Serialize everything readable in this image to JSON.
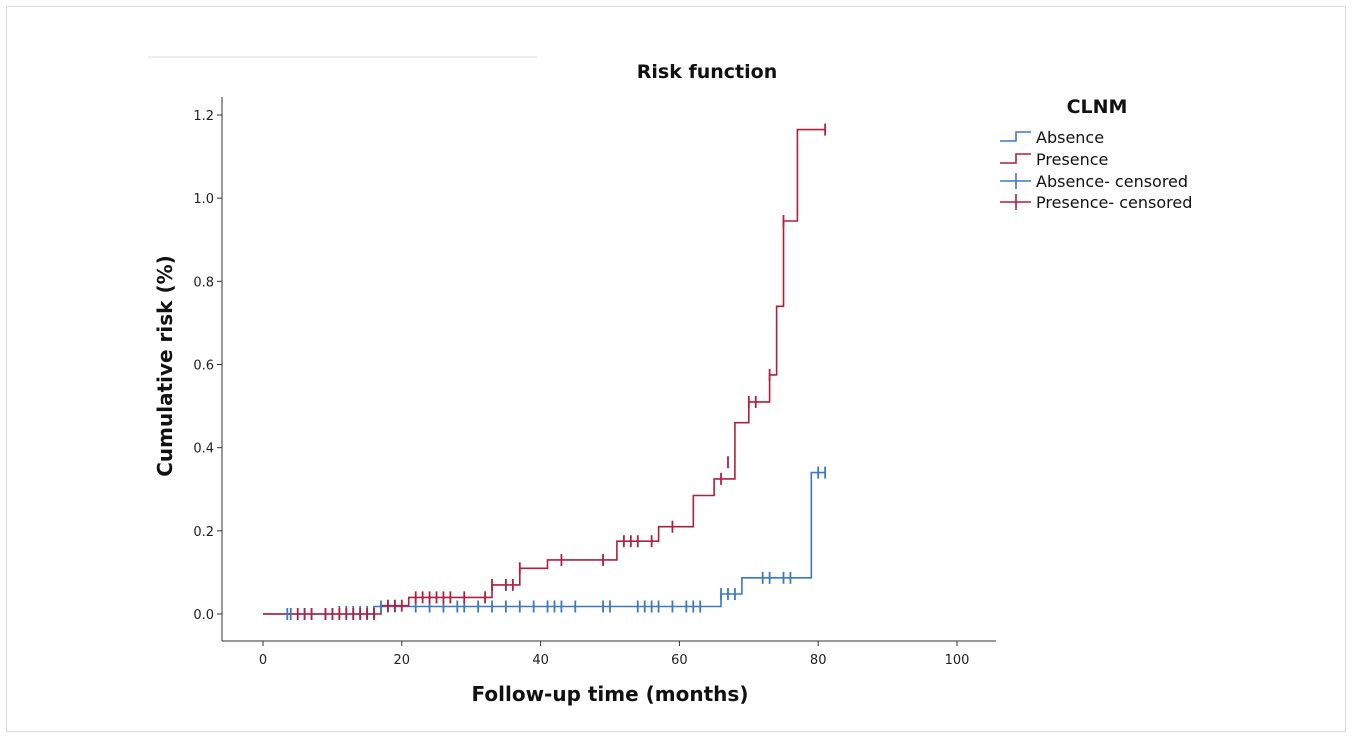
{
  "chart_data": {
    "type": "line",
    "title": "Risk function",
    "xlabel": "Follow-up time (months)",
    "ylabel": "Cumulative risk (%)",
    "xlim": [
      0,
      100
    ],
    "ylim": [
      0,
      1.2
    ],
    "x_ticks": [
      "0",
      "20",
      "40",
      "60",
      "80",
      "100"
    ],
    "y_ticks": [
      "0.0",
      "0.2",
      "0.4",
      "0.6",
      "0.8",
      "1.0",
      "1.2"
    ],
    "grid": false,
    "legend": {
      "title": "CLNM",
      "placement": "right",
      "entries": [
        "Absence",
        "Presence",
        "Absence- censored",
        "Presence- censored"
      ]
    },
    "series": [
      {
        "name": "Absence",
        "color": "#3b78c4",
        "step": [
          [
            0,
            0
          ],
          [
            16,
            0
          ],
          [
            16,
            0.018
          ],
          [
            66,
            0.018
          ],
          [
            66,
            0.048
          ],
          [
            69,
            0.048
          ],
          [
            69,
            0.087
          ],
          [
            79,
            0.087
          ],
          [
            79,
            0.34
          ],
          [
            81,
            0.34
          ]
        ],
        "censored": [
          [
            3.5,
            0
          ],
          [
            4,
            0
          ],
          [
            6,
            0
          ],
          [
            7,
            0
          ],
          [
            9,
            0
          ],
          [
            10,
            0
          ],
          [
            11,
            0.005
          ],
          [
            12,
            0.005
          ],
          [
            13,
            0.005
          ],
          [
            14,
            0.005
          ],
          [
            15,
            0.005
          ],
          [
            16,
            0.005
          ],
          [
            17,
            0.018
          ],
          [
            18,
            0.018
          ],
          [
            19,
            0.018
          ],
          [
            22,
            0.018
          ],
          [
            24,
            0.018
          ],
          [
            26,
            0.018
          ],
          [
            28,
            0.018
          ],
          [
            29,
            0.018
          ],
          [
            31,
            0.018
          ],
          [
            33,
            0.018
          ],
          [
            35,
            0.018
          ],
          [
            37,
            0.018
          ],
          [
            39,
            0.018
          ],
          [
            41,
            0.018
          ],
          [
            42,
            0.018
          ],
          [
            43,
            0.018
          ],
          [
            45,
            0.018
          ],
          [
            49,
            0.018
          ],
          [
            50,
            0.018
          ],
          [
            54,
            0.018
          ],
          [
            55,
            0.018
          ],
          [
            56,
            0.018
          ],
          [
            57,
            0.018
          ],
          [
            59,
            0.018
          ],
          [
            61,
            0.018
          ],
          [
            62,
            0.018
          ],
          [
            63,
            0.018
          ],
          [
            66,
            0.048
          ],
          [
            67,
            0.048
          ],
          [
            68,
            0.048
          ],
          [
            72,
            0.087
          ],
          [
            73,
            0.087
          ],
          [
            75,
            0.087
          ],
          [
            76,
            0.087
          ],
          [
            80,
            0.34
          ],
          [
            81,
            0.34
          ]
        ]
      },
      {
        "name": "Presence",
        "color": "#b11f3c",
        "step": [
          [
            0,
            0
          ],
          [
            17,
            0
          ],
          [
            17,
            0.02
          ],
          [
            21,
            0.02
          ],
          [
            21,
            0.04
          ],
          [
            33,
            0.04
          ],
          [
            33,
            0.07
          ],
          [
            37,
            0.07
          ],
          [
            37,
            0.11
          ],
          [
            41,
            0.11
          ],
          [
            41,
            0.13
          ],
          [
            51,
            0.13
          ],
          [
            51,
            0.175
          ],
          [
            57,
            0.175
          ],
          [
            57,
            0.21
          ],
          [
            62,
            0.21
          ],
          [
            62,
            0.285
          ],
          [
            65,
            0.285
          ],
          [
            65,
            0.325
          ],
          [
            68,
            0.325
          ],
          [
            68,
            0.46
          ],
          [
            70,
            0.46
          ],
          [
            70,
            0.51
          ],
          [
            73,
            0.51
          ],
          [
            73,
            0.575
          ],
          [
            74,
            0.575
          ],
          [
            74,
            0.74
          ],
          [
            75,
            0.74
          ],
          [
            75,
            0.945
          ],
          [
            77,
            0.945
          ],
          [
            77,
            1.165
          ],
          [
            81,
            1.165
          ]
        ],
        "censored": [
          [
            5,
            0
          ],
          [
            6,
            0
          ],
          [
            7,
            0
          ],
          [
            9,
            0
          ],
          [
            10,
            0
          ],
          [
            11,
            0
          ],
          [
            12,
            0
          ],
          [
            13,
            0
          ],
          [
            14,
            0
          ],
          [
            15,
            0
          ],
          [
            16,
            0
          ],
          [
            18,
            0.02
          ],
          [
            19,
            0.02
          ],
          [
            20,
            0.02
          ],
          [
            22,
            0.04
          ],
          [
            23,
            0.04
          ],
          [
            24,
            0.04
          ],
          [
            25,
            0.04
          ],
          [
            26,
            0.04
          ],
          [
            27,
            0.04
          ],
          [
            29,
            0.04
          ],
          [
            32,
            0.04
          ],
          [
            33,
            0.07
          ],
          [
            35,
            0.07
          ],
          [
            36,
            0.07
          ],
          [
            37,
            0.11
          ],
          [
            43,
            0.13
          ],
          [
            49,
            0.13
          ],
          [
            52,
            0.175
          ],
          [
            53,
            0.175
          ],
          [
            54,
            0.175
          ],
          [
            56,
            0.175
          ],
          [
            59,
            0.21
          ],
          [
            66,
            0.325
          ],
          [
            67,
            0.365
          ],
          [
            70,
            0.51
          ],
          [
            71,
            0.51
          ],
          [
            73,
            0.575
          ],
          [
            75,
            0.945
          ],
          [
            81,
            1.165
          ]
        ]
      }
    ]
  }
}
